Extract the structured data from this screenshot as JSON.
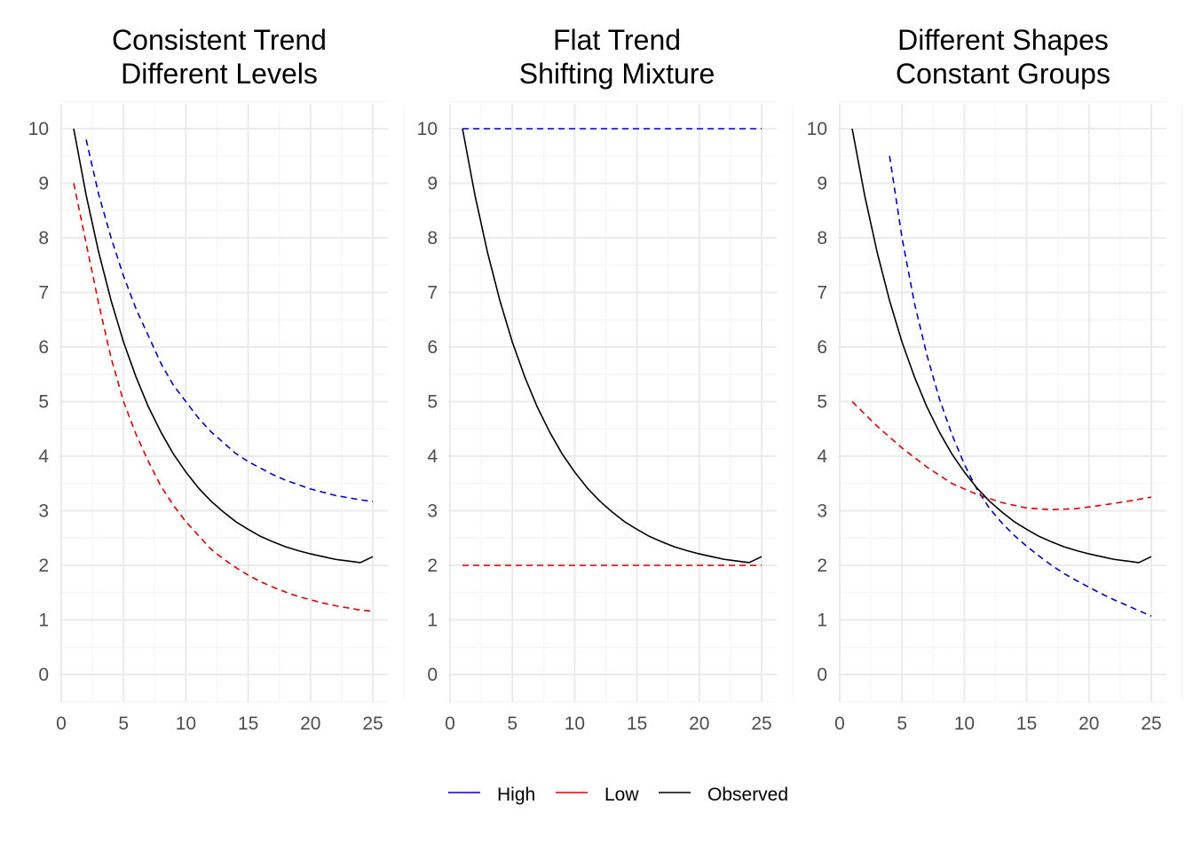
{
  "chart_data": [
    {
      "type": "line",
      "title_lines": [
        "Consistent Trend",
        "Different Levels"
      ],
      "xlabel": "",
      "ylabel": "",
      "xlim": [
        0,
        25
      ],
      "ylim": [
        0,
        10
      ],
      "x_ticks": [
        0,
        5,
        10,
        15,
        20,
        25
      ],
      "y_ticks": [
        0,
        1,
        2,
        3,
        4,
        5,
        6,
        7,
        8,
        9,
        10
      ],
      "grid": true,
      "series": [
        {
          "name": "High",
          "x": [
            2,
            3,
            4,
            5,
            6,
            7,
            8,
            9,
            10,
            11,
            12,
            13,
            14,
            15,
            16,
            17,
            18,
            19,
            20,
            21,
            22,
            23,
            24,
            25
          ],
          "y": [
            9.8,
            8.8,
            8.0,
            7.3,
            6.7,
            6.2,
            5.7,
            5.3,
            5.0,
            4.7,
            4.45,
            4.25,
            4.05,
            3.9,
            3.78,
            3.66,
            3.56,
            3.48,
            3.4,
            3.34,
            3.28,
            3.24,
            3.2,
            3.17
          ]
        },
        {
          "name": "Low",
          "x": [
            1,
            2,
            3,
            4,
            5,
            6,
            7,
            8,
            9,
            10,
            11,
            12,
            13,
            14,
            15,
            16,
            17,
            18,
            19,
            20,
            21,
            22,
            23,
            24,
            25
          ],
          "y": [
            9.0,
            7.9,
            6.8,
            5.8,
            5.0,
            4.4,
            3.9,
            3.45,
            3.1,
            2.8,
            2.55,
            2.3,
            2.12,
            1.96,
            1.82,
            1.7,
            1.6,
            1.51,
            1.43,
            1.37,
            1.31,
            1.26,
            1.22,
            1.18,
            1.16
          ]
        },
        {
          "name": "Observed",
          "x": [
            1,
            2,
            3,
            4,
            5,
            6,
            7,
            8,
            9,
            10,
            11,
            12,
            13,
            14,
            15,
            16,
            17,
            18,
            19,
            20,
            21,
            22,
            23,
            24,
            25
          ],
          "y": [
            10.0,
            8.78,
            7.74,
            6.85,
            6.09,
            5.45,
            4.9,
            4.44,
            4.04,
            3.71,
            3.42,
            3.18,
            2.98,
            2.8,
            2.66,
            2.53,
            2.43,
            2.34,
            2.27,
            2.21,
            2.16,
            2.11,
            2.08,
            2.05,
            2.16
          ]
        }
      ]
    },
    {
      "type": "line",
      "title_lines": [
        "Flat Trend",
        "Shifting Mixture"
      ],
      "xlabel": "",
      "ylabel": "",
      "xlim": [
        0,
        25
      ],
      "ylim": [
        0,
        10
      ],
      "x_ticks": [
        0,
        5,
        10,
        15,
        20,
        25
      ],
      "y_ticks": [
        0,
        1,
        2,
        3,
        4,
        5,
        6,
        7,
        8,
        9,
        10
      ],
      "grid": true,
      "series": [
        {
          "name": "High",
          "x": [
            1,
            25
          ],
          "y": [
            10,
            10
          ]
        },
        {
          "name": "Low",
          "x": [
            1,
            25
          ],
          "y": [
            2,
            2
          ]
        },
        {
          "name": "Observed",
          "x": [
            1,
            2,
            3,
            4,
            5,
            6,
            7,
            8,
            9,
            10,
            11,
            12,
            13,
            14,
            15,
            16,
            17,
            18,
            19,
            20,
            21,
            22,
            23,
            24,
            25
          ],
          "y": [
            10.0,
            8.78,
            7.74,
            6.85,
            6.09,
            5.45,
            4.9,
            4.44,
            4.04,
            3.71,
            3.42,
            3.18,
            2.98,
            2.8,
            2.66,
            2.53,
            2.43,
            2.34,
            2.27,
            2.21,
            2.16,
            2.11,
            2.08,
            2.05,
            2.16
          ]
        }
      ]
    },
    {
      "type": "line",
      "title_lines": [
        "Different Shapes",
        "Constant Groups"
      ],
      "xlabel": "",
      "ylabel": "",
      "xlim": [
        0,
        25
      ],
      "ylim": [
        0,
        10
      ],
      "x_ticks": [
        0,
        5,
        10,
        15,
        20,
        25
      ],
      "y_ticks": [
        0,
        1,
        2,
        3,
        4,
        5,
        6,
        7,
        8,
        9,
        10
      ],
      "grid": true,
      "series": [
        {
          "name": "High",
          "x": [
            4,
            5,
            6,
            7,
            8,
            9,
            10,
            11,
            12,
            13,
            14,
            15,
            16,
            17,
            18,
            19,
            20,
            21,
            22,
            23,
            24,
            25
          ],
          "y": [
            9.5,
            8.0,
            6.8,
            5.85,
            5.05,
            4.4,
            3.85,
            3.4,
            3.05,
            2.78,
            2.55,
            2.35,
            2.17,
            2.0,
            1.85,
            1.72,
            1.6,
            1.48,
            1.37,
            1.27,
            1.17,
            1.07
          ]
        },
        {
          "name": "Low",
          "x": [
            1,
            3,
            5,
            7,
            9,
            11,
            13,
            15,
            17,
            19,
            21,
            23,
            25
          ],
          "y": [
            5.0,
            4.55,
            4.15,
            3.8,
            3.5,
            3.3,
            3.15,
            3.05,
            3.02,
            3.04,
            3.1,
            3.17,
            3.25
          ]
        },
        {
          "name": "Observed",
          "x": [
            1,
            2,
            3,
            4,
            5,
            6,
            7,
            8,
            9,
            10,
            11,
            12,
            13,
            14,
            15,
            16,
            17,
            18,
            19,
            20,
            21,
            22,
            23,
            24,
            25
          ],
          "y": [
            10.0,
            8.78,
            7.74,
            6.85,
            6.09,
            5.45,
            4.9,
            4.44,
            4.04,
            3.71,
            3.42,
            3.18,
            2.98,
            2.8,
            2.66,
            2.53,
            2.43,
            2.34,
            2.27,
            2.21,
            2.16,
            2.11,
            2.08,
            2.05,
            2.16
          ]
        }
      ]
    }
  ],
  "legend": {
    "position": "bottom",
    "items": [
      {
        "label": "High",
        "color": "#0000cc"
      },
      {
        "label": "Low",
        "color": "#dd0000"
      },
      {
        "label": "Observed",
        "color": "#000000"
      }
    ]
  },
  "colors": {
    "High": "#0000cc",
    "Low": "#dd0000",
    "Observed": "#000000",
    "grid_major": "#ebebeb",
    "grid_minor": "#f4f4f4",
    "tick_text": "#4d4d4d"
  },
  "line_styles": {
    "High": "dashed",
    "Low": "dashed",
    "Observed": "solid"
  }
}
